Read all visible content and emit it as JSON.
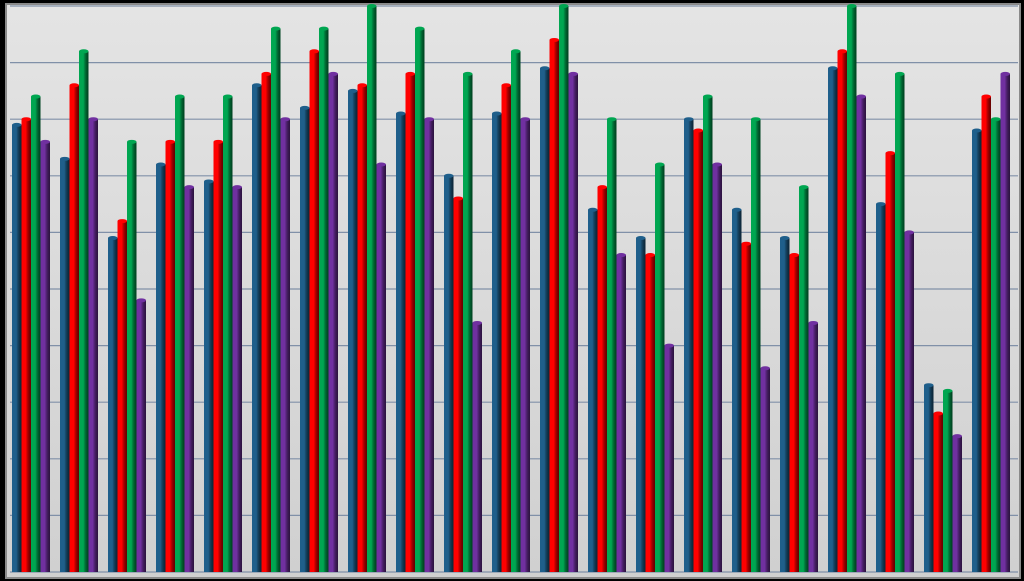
{
  "chart_data": {
    "type": "bar",
    "categories": [
      null,
      null,
      null,
      null,
      null,
      null,
      null,
      null,
      null,
      null,
      null,
      null,
      null,
      null,
      null,
      null,
      null,
      null,
      null,
      null,
      null
    ],
    "series": [
      {
        "color": "#1f5f8b",
        "values": [
          7.9,
          7.3,
          5.9,
          7.2,
          6.9,
          8.6,
          8.2,
          8.5,
          8.1,
          7.0,
          8.1,
          8.9,
          6.4,
          5.9,
          8.0,
          6.4,
          5.9,
          8.9,
          6.5,
          3.3,
          7.8
        ]
      },
      {
        "color": "#ff0000",
        "values": [
          8.0,
          8.6,
          6.2,
          7.6,
          7.6,
          8.8,
          9.2,
          8.6,
          8.8,
          6.6,
          8.6,
          9.4,
          6.8,
          5.6,
          7.8,
          5.8,
          5.6,
          9.2,
          7.4,
          2.8,
          8.4
        ]
      },
      {
        "color": "#00a651",
        "values": [
          8.4,
          9.2,
          7.6,
          8.4,
          8.4,
          9.6,
          9.6,
          10.0,
          9.6,
          8.8,
          9.2,
          10.0,
          8.0,
          7.2,
          8.4,
          8.0,
          6.8,
          10.0,
          8.8,
          3.2,
          8.0
        ]
      },
      {
        "color": "#7030a0",
        "values": [
          7.6,
          8.0,
          4.8,
          6.8,
          6.8,
          8.0,
          8.8,
          7.2,
          8.0,
          4.4,
          8.0,
          8.8,
          5.6,
          4.0,
          7.2,
          3.6,
          4.4,
          8.4,
          6.0,
          2.4,
          8.8
        ]
      }
    ],
    "ylim": [
      0,
      10
    ],
    "yticks": [
      0,
      1,
      2,
      3,
      4,
      5,
      6,
      7,
      8,
      9,
      10
    ],
    "grid": true
  }
}
